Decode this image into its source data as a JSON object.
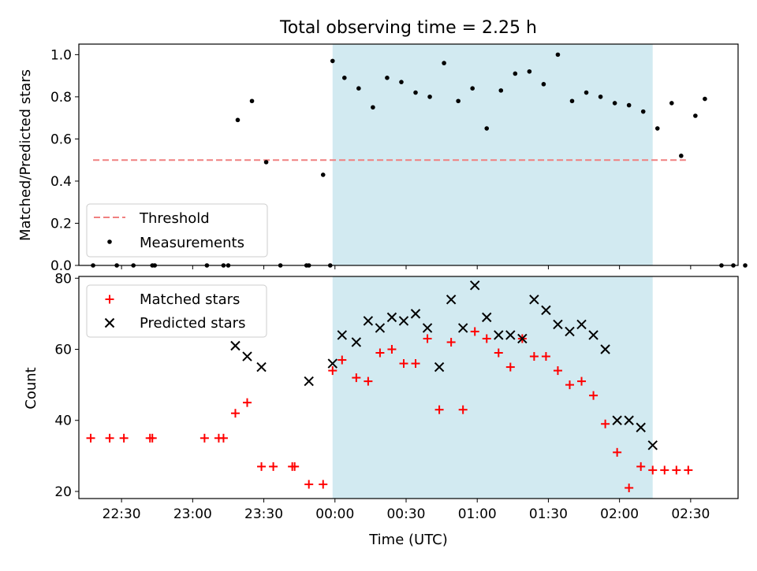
{
  "title": "Total observing time = 2.25 h",
  "colors": {
    "threshold": "#f08080",
    "measurement": "#000000",
    "matched": "#ff0000",
    "predicted": "#000000",
    "shade": "#add8e6"
  },
  "chart_data": [
    {
      "type": "scatter",
      "ylabel": "Matched/Predicted stars",
      "ylim": [
        0,
        1.05
      ],
      "yticks": [
        0.0,
        0.2,
        0.4,
        0.6,
        0.8,
        1.0
      ],
      "ytick_labels": [
        "0.0",
        "0.2",
        "0.4",
        "0.6",
        "0.8",
        "1.0"
      ],
      "x_range": [
        "22:12",
        "02:50"
      ],
      "shaded_interval": [
        "23:59",
        "02:14"
      ],
      "legend_position": "lower left",
      "threshold": {
        "name": "Threshold",
        "value": 0.5,
        "x_start": "22:18",
        "x_end": "02:28"
      },
      "series": [
        {
          "name": "Measurements",
          "points": [
            [
              "22:18",
              0.0
            ],
            [
              "22:28",
              0.0
            ],
            [
              "22:35",
              0.0
            ],
            [
              "22:43",
              0.0
            ],
            [
              "22:44",
              0.0
            ],
            [
              "23:06",
              0.0
            ],
            [
              "23:13",
              0.0
            ],
            [
              "23:15",
              0.0
            ],
            [
              "23:19",
              0.69
            ],
            [
              "23:25",
              0.78
            ],
            [
              "23:31",
              0.49
            ],
            [
              "23:37",
              0.0
            ],
            [
              "23:48",
              0.0
            ],
            [
              "23:49",
              0.0
            ],
            [
              "23:55",
              0.43
            ],
            [
              "23:58",
              0.0
            ],
            [
              "23:59",
              0.97
            ],
            [
              "00:04",
              0.89
            ],
            [
              "00:10",
              0.84
            ],
            [
              "00:16",
              0.75
            ],
            [
              "00:22",
              0.89
            ],
            [
              "00:28",
              0.87
            ],
            [
              "00:34",
              0.82
            ],
            [
              "00:40",
              0.8
            ],
            [
              "00:46",
              0.96
            ],
            [
              "00:52",
              0.78
            ],
            [
              "00:58",
              0.84
            ],
            [
              "01:04",
              0.65
            ],
            [
              "01:10",
              0.83
            ],
            [
              "01:16",
              0.91
            ],
            [
              "01:22",
              0.92
            ],
            [
              "01:28",
              0.86
            ],
            [
              "01:34",
              1.0
            ],
            [
              "01:40",
              0.78
            ],
            [
              "01:46",
              0.82
            ],
            [
              "01:52",
              0.8
            ],
            [
              "01:58",
              0.77
            ],
            [
              "02:04",
              0.76
            ],
            [
              "02:10",
              0.73
            ],
            [
              "02:16",
              0.65
            ],
            [
              "02:22",
              0.77
            ],
            [
              "02:26",
              0.52
            ],
            [
              "02:32",
              0.71
            ],
            [
              "02:36",
              0.79
            ],
            [
              "02:43",
              0.0
            ],
            [
              "02:48",
              0.0
            ],
            [
              "02:53",
              0.0
            ]
          ]
        }
      ]
    },
    {
      "type": "scatter",
      "xlabel": "Time (UTC)",
      "ylabel": "Count",
      "ylim": [
        18,
        80.5
      ],
      "yticks": [
        20,
        40,
        60,
        80
      ],
      "xticks": [
        "22:30",
        "23:00",
        "23:30",
        "00:00",
        "00:30",
        "01:00",
        "01:30",
        "02:00",
        "02:30"
      ],
      "legend_position": "upper left",
      "series": [
        {
          "name": "Matched stars",
          "points": [
            [
              "22:17",
              35
            ],
            [
              "22:25",
              35
            ],
            [
              "22:31",
              35
            ],
            [
              "22:42",
              35
            ],
            [
              "22:43",
              35
            ],
            [
              "23:05",
              35
            ],
            [
              "23:11",
              35
            ],
            [
              "23:13",
              35
            ],
            [
              "23:18",
              42
            ],
            [
              "23:23",
              45
            ],
            [
              "23:29",
              27
            ],
            [
              "23:34",
              27
            ],
            [
              "23:42",
              27
            ],
            [
              "23:43",
              27
            ],
            [
              "23:49",
              22
            ],
            [
              "23:55",
              22
            ],
            [
              "23:59",
              54
            ],
            [
              "00:03",
              57
            ],
            [
              "00:09",
              52
            ],
            [
              "00:14",
              51
            ],
            [
              "00:19",
              59
            ],
            [
              "00:24",
              60
            ],
            [
              "00:29",
              56
            ],
            [
              "00:34",
              56
            ],
            [
              "00:39",
              63
            ],
            [
              "00:44",
              43
            ],
            [
              "00:49",
              62
            ],
            [
              "00:54",
              43
            ],
            [
              "00:59",
              65
            ],
            [
              "01:04",
              63
            ],
            [
              "01:09",
              59
            ],
            [
              "01:14",
              55
            ],
            [
              "01:19",
              63
            ],
            [
              "01:24",
              58
            ],
            [
              "01:29",
              58
            ],
            [
              "01:34",
              54
            ],
            [
              "01:39",
              50
            ],
            [
              "01:44",
              51
            ],
            [
              "01:49",
              47
            ],
            [
              "01:54",
              39
            ],
            [
              "01:59",
              31
            ],
            [
              "02:04",
              21
            ],
            [
              "02:09",
              27
            ],
            [
              "02:14",
              26
            ],
            [
              "02:19",
              26
            ],
            [
              "02:24",
              26
            ],
            [
              "02:29",
              26
            ]
          ]
        },
        {
          "name": "Predicted stars",
          "points": [
            [
              "23:18",
              61
            ],
            [
              "23:23",
              58
            ],
            [
              "23:29",
              55
            ],
            [
              "23:49",
              51
            ],
            [
              "23:59",
              56
            ],
            [
              "00:03",
              64
            ],
            [
              "00:09",
              62
            ],
            [
              "00:14",
              68
            ],
            [
              "00:19",
              66
            ],
            [
              "00:24",
              69
            ],
            [
              "00:29",
              68
            ],
            [
              "00:34",
              70
            ],
            [
              "00:39",
              66
            ],
            [
              "00:44",
              55
            ],
            [
              "00:49",
              74
            ],
            [
              "00:54",
              66
            ],
            [
              "00:59",
              78
            ],
            [
              "01:04",
              69
            ],
            [
              "01:09",
              64
            ],
            [
              "01:14",
              64
            ],
            [
              "01:19",
              63
            ],
            [
              "01:24",
              74
            ],
            [
              "01:29",
              71
            ],
            [
              "01:34",
              67
            ],
            [
              "01:39",
              65
            ],
            [
              "01:44",
              67
            ],
            [
              "01:49",
              64
            ],
            [
              "01:54",
              60
            ],
            [
              "01:59",
              40
            ],
            [
              "02:04",
              40
            ],
            [
              "02:09",
              38
            ],
            [
              "02:14",
              33
            ]
          ]
        }
      ]
    }
  ]
}
